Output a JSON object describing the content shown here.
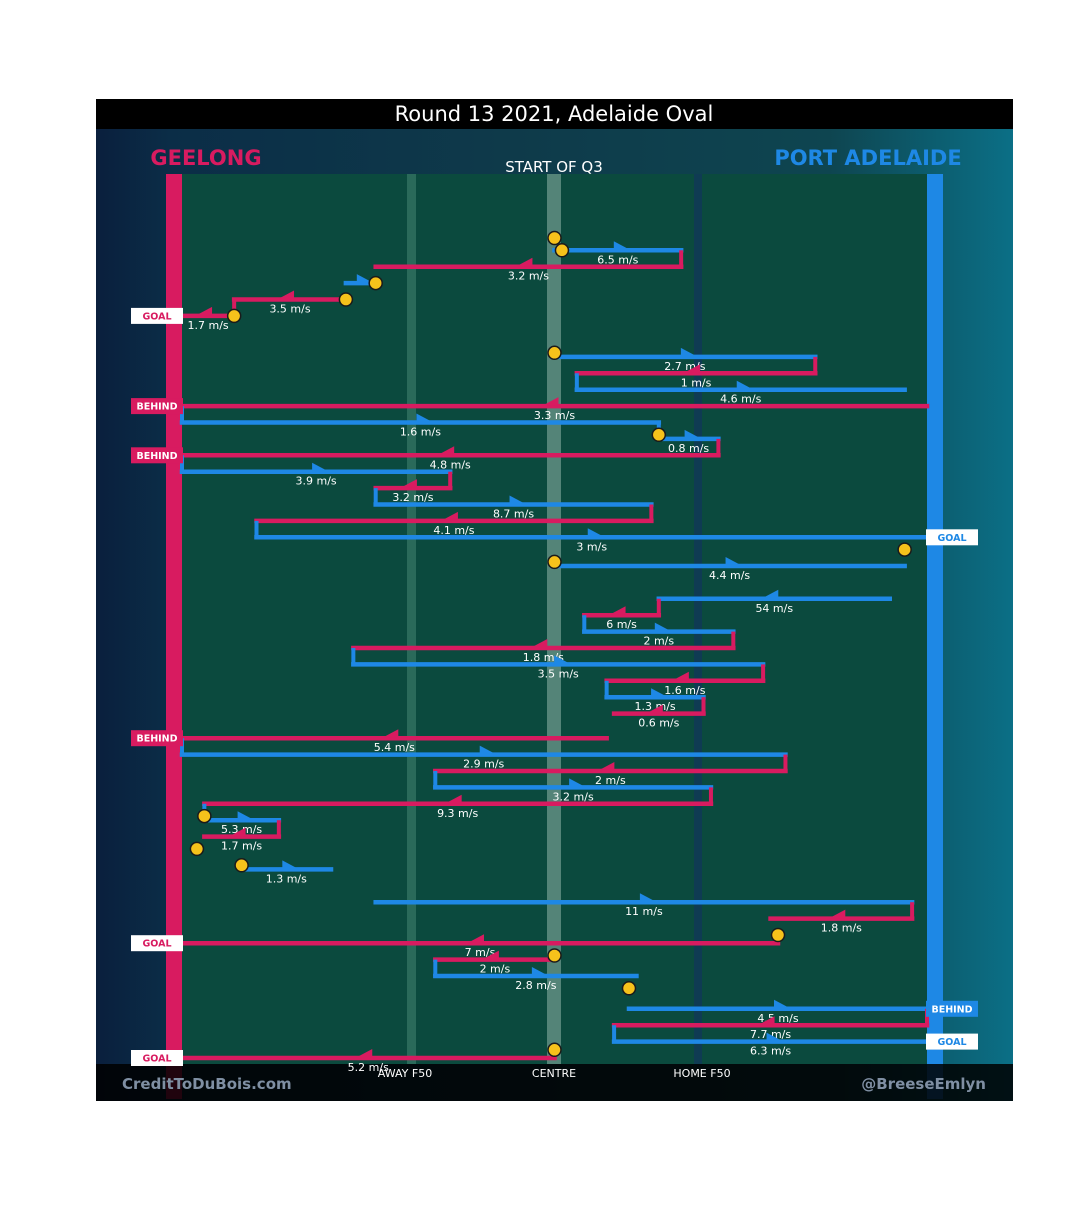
{
  "chart_data": {
    "type": "chain-timeline",
    "title": "Round 13 2021, Adelaide Oval",
    "subtitle": "START OF Q3",
    "teams": [
      {
        "name": "GEELONG",
        "side": "left",
        "color": "#d81b60"
      },
      {
        "name": "PORT ADELAIDE",
        "side": "right",
        "color": "#1e88e5"
      }
    ],
    "x_axis": {
      "range": [
        0,
        100
      ],
      "labels": [
        {
          "text": "AWAY F50",
          "x": 30
        },
        {
          "text": "CENTRE",
          "x": 50
        },
        {
          "text": "HOME F50",
          "x": 70
        }
      ]
    },
    "credits": {
      "left": "CreditToDuBois.com",
      "right": "@BreeseEmlyn"
    },
    "chains": [
      {
        "team": "PORT ADELAIDE",
        "speed": "6.5 m/s",
        "y": 13,
        "from": 50,
        "to": 67
      },
      {
        "team": "GEELONG",
        "speed": "3.2 m/s",
        "y": 17,
        "from": 67,
        "to": 26
      },
      {
        "team": "PORT ADELAIDE",
        "speed": "",
        "y": 21,
        "from": 22,
        "to": 26
      },
      {
        "team": "GEELONG",
        "speed": "3.5 m/s",
        "y": 25,
        "from": 22,
        "to": 7
      },
      {
        "team": "GEELONG",
        "speed": "1.7 m/s",
        "y": 29,
        "from": 7,
        "to": 0,
        "outcome": "GOAL"
      },
      {
        "team": "PORT ADELAIDE",
        "speed": "2.7 m/s",
        "y": 39,
        "from": 50,
        "to": 85
      },
      {
        "team": "GEELONG",
        "speed": "1 m/s",
        "y": 43,
        "from": 85,
        "to": 53
      },
      {
        "team": "PORT ADELAIDE",
        "speed": "4.6 m/s",
        "y": 47,
        "from": 53,
        "to": 97
      },
      {
        "team": "GEELONG",
        "speed": "3.3 m/s",
        "y": 51,
        "from": 100,
        "to": 0,
        "outcome": "BEHIND"
      },
      {
        "team": "PORT ADELAIDE",
        "speed": "1.6 m/s",
        "y": 55,
        "from": 0,
        "to": 64
      },
      {
        "team": "PORT ADELAIDE",
        "speed": "0.8 m/s",
        "y": 59,
        "from": 64,
        "to": 72
      },
      {
        "team": "GEELONG",
        "speed": "4.8 m/s",
        "y": 63,
        "from": 72,
        "to": 0,
        "outcome": "BEHIND"
      },
      {
        "team": "PORT ADELAIDE",
        "speed": "3.9 m/s",
        "y": 67,
        "from": 0,
        "to": 36
      },
      {
        "team": "GEELONG",
        "speed": "3.2 m/s",
        "y": 71,
        "from": 36,
        "to": 26
      },
      {
        "team": "PORT ADELAIDE",
        "speed": "8.7 m/s",
        "y": 75,
        "from": 26,
        "to": 63
      },
      {
        "team": "GEELONG",
        "speed": "4.1 m/s",
        "y": 79,
        "from": 63,
        "to": 10
      },
      {
        "team": "PORT ADELAIDE",
        "speed": "3 m/s",
        "y": 83,
        "from": 10,
        "to": 100,
        "outcome": "GOAL"
      },
      {
        "team": "PORT ADELAIDE",
        "speed": "4.4 m/s",
        "y": 90,
        "from": 50,
        "to": 97
      },
      {
        "team": "PORT ADELAIDE",
        "speed": "54 m/s",
        "y": 98,
        "from": 95,
        "to": 64
      },
      {
        "team": "GEELONG",
        "speed": "6 m/s",
        "y": 102,
        "from": 64,
        "to": 54
      },
      {
        "team": "PORT ADELAIDE",
        "speed": "2 m/s",
        "y": 106,
        "from": 54,
        "to": 74
      },
      {
        "team": "GEELONG",
        "speed": "1.8 m/s",
        "y": 110,
        "from": 74,
        "to": 23
      },
      {
        "team": "PORT ADELAIDE",
        "speed": "3.5 m/s",
        "y": 114,
        "from": 23,
        "to": 78
      },
      {
        "team": "GEELONG",
        "speed": "1.6 m/s",
        "y": 118,
        "from": 78,
        "to": 57
      },
      {
        "team": "PORT ADELAIDE",
        "speed": "1.3 m/s",
        "y": 122,
        "from": 57,
        "to": 70
      },
      {
        "team": "GEELONG",
        "speed": "0.6 m/s",
        "y": 126,
        "from": 70,
        "to": 58
      },
      {
        "team": "GEELONG",
        "speed": "5.4 m/s",
        "y": 132,
        "from": 57,
        "to": 0,
        "outcome": "BEHIND"
      },
      {
        "team": "PORT ADELAIDE",
        "speed": "2.9 m/s",
        "y": 136,
        "from": 0,
        "to": 81
      },
      {
        "team": "GEELONG",
        "speed": "2 m/s",
        "y": 140,
        "from": 81,
        "to": 34
      },
      {
        "team": "PORT ADELAIDE",
        "speed": "3.2 m/s",
        "y": 144,
        "from": 34,
        "to": 71
      },
      {
        "team": "GEELONG",
        "speed": "9.3 m/s",
        "y": 148,
        "from": 71,
        "to": 3
      },
      {
        "team": "PORT ADELAIDE",
        "speed": "5.3 m/s",
        "y": 152,
        "from": 3,
        "to": 13
      },
      {
        "team": "GEELONG",
        "speed": "1.7 m/s",
        "y": 156,
        "from": 13,
        "to": 3
      },
      {
        "team": "PORT ADELAIDE",
        "speed": "1.3 m/s",
        "y": 164,
        "from": 8,
        "to": 20
      },
      {
        "team": "PORT ADELAIDE",
        "speed": "11 m/s",
        "y": 172,
        "from": 26,
        "to": 98
      },
      {
        "team": "GEELONG",
        "speed": "1.8 m/s",
        "y": 176,
        "from": 98,
        "to": 79
      },
      {
        "team": "GEELONG",
        "speed": "7 m/s",
        "y": 182,
        "from": 80,
        "to": 0,
        "outcome": "GOAL"
      },
      {
        "team": "GEELONG",
        "speed": "2 m/s",
        "y": 186,
        "from": 50,
        "to": 34
      },
      {
        "team": "PORT ADELAIDE",
        "speed": "2.8 m/s",
        "y": 190,
        "from": 34,
        "to": 61
      },
      {
        "team": "PORT ADELAIDE",
        "speed": "4.5 m/s",
        "y": 198,
        "from": 60,
        "to": 100,
        "outcome": "BEHIND"
      },
      {
        "team": "GEELONG",
        "speed": "7.7 m/s",
        "y": 202,
        "from": 100,
        "to": 58
      },
      {
        "team": "PORT ADELAIDE",
        "speed": "6.3 m/s",
        "y": 206,
        "from": 58,
        "to": 100,
        "outcome": "GOAL"
      },
      {
        "team": "GEELONG",
        "speed": "5.2 m/s",
        "y": 210,
        "from": 50,
        "to": 0,
        "outcome": "GOAL"
      }
    ],
    "bounce_markers": [
      {
        "x": 50,
        "y": 10
      },
      {
        "x": 51,
        "y": 13
      },
      {
        "x": 26,
        "y": 21
      },
      {
        "x": 22,
        "y": 25
      },
      {
        "x": 7,
        "y": 29
      },
      {
        "x": 50,
        "y": 38
      },
      {
        "x": 64,
        "y": 58
      },
      {
        "x": 97,
        "y": 86
      },
      {
        "x": 50,
        "y": 89
      },
      {
        "x": 3,
        "y": 151
      },
      {
        "x": 2,
        "y": 159
      },
      {
        "x": 8,
        "y": 163
      },
      {
        "x": 80,
        "y": 180
      },
      {
        "x": 50,
        "y": 185
      },
      {
        "x": 60,
        "y": 193
      },
      {
        "x": 50,
        "y": 208
      }
    ]
  }
}
